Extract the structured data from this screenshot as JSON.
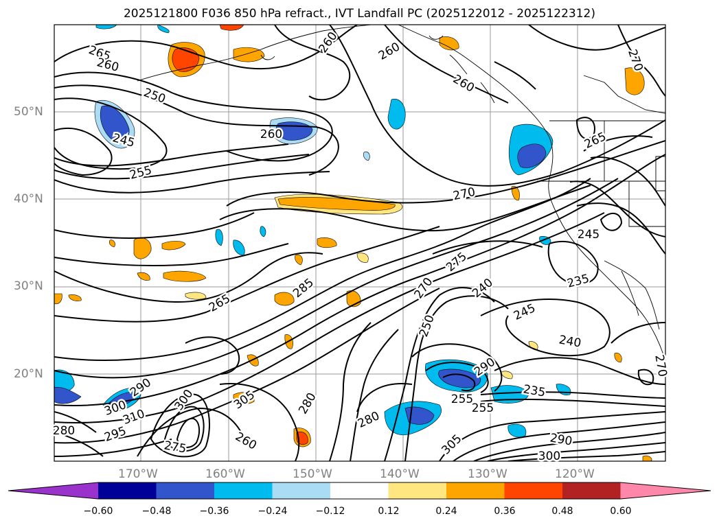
{
  "title": "2025121800 F036 850 hPa refract., IVT Landfall PC (2025122012 - 2025122312)",
  "lat_ticks": [
    "50°N",
    "40°N",
    "30°N",
    "20°N"
  ],
  "lon_ticks": [
    "170°W",
    "160°W",
    "150°W",
    "140°W",
    "130°W",
    "120°W"
  ],
  "contour_labels": [
    "265",
    "260",
    "250",
    "260",
    "260",
    "260",
    "270",
    "245",
    "255",
    "260",
    "270",
    "265",
    "265",
    "245",
    "235",
    "245",
    "240",
    "285",
    "275",
    "270",
    "240",
    "250",
    "235",
    "255",
    "255",
    "290",
    "290",
    "300",
    "300",
    "305",
    "310",
    "295",
    "280",
    "280",
    "275",
    "280",
    "305",
    "260",
    "290",
    "300",
    "270"
  ],
  "colorbar": {
    "ticks": [
      "−0.60",
      "−0.48",
      "−0.36",
      "−0.24",
      "−0.12",
      "0.12",
      "0.24",
      "0.36",
      "0.48",
      "0.60"
    ],
    "colors": [
      "#9933cc",
      "#000099",
      "#3355cc",
      "#00bbee",
      "#aaddf5",
      "#ffffff",
      "#ffe680",
      "#ffa500",
      "#ff4500",
      "#b22222",
      "#ff88aa"
    ]
  }
}
